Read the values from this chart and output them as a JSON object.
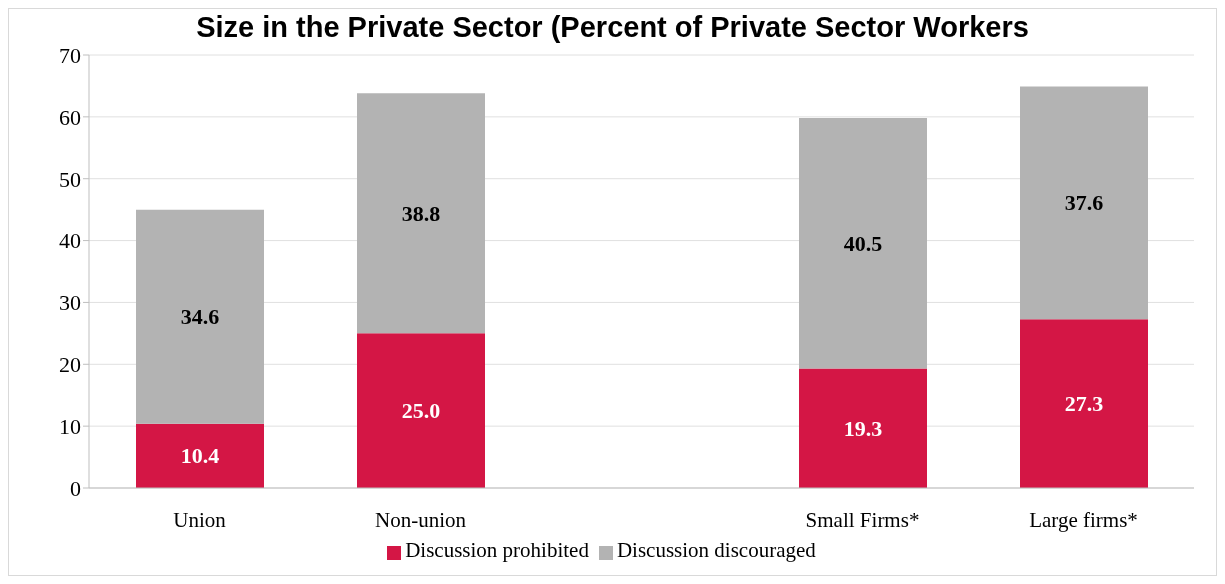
{
  "chart_data": {
    "type": "bar",
    "title": "Size in the Private Sector (Percent of Private Sector Workers",
    "categories": [
      "Union",
      "Non-union",
      null,
      "Small Firms*",
      "Large firms*"
    ],
    "stacked": true,
    "series": [
      {
        "name": "Discussion prohibited",
        "color": "#d41645",
        "values": [
          10.4,
          25.0,
          null,
          19.3,
          27.3
        ],
        "value_labels": [
          "10.4",
          "25.0",
          null,
          "19.3",
          "27.3"
        ]
      },
      {
        "name": "Discussion discouraged",
        "color": "#b3b3b3",
        "values": [
          34.6,
          38.8,
          null,
          40.5,
          37.6
        ],
        "value_labels": [
          "34.6",
          "38.8",
          null,
          "40.5",
          "37.6"
        ]
      }
    ],
    "ylim": [
      0,
      70
    ],
    "yticks": [
      0,
      10,
      20,
      30,
      40,
      50,
      60,
      70
    ],
    "grid": "y",
    "legend": "bottom"
  }
}
